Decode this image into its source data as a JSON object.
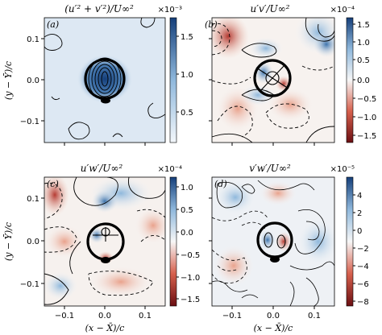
{
  "figure": {
    "shared_axes": {
      "ylabel": "(y − Ȳ)/c",
      "xlabel": "(x − X̄)/c",
      "x_ticks": [
        "−0.1",
        "0.0",
        "0.1"
      ],
      "y_ticks": [
        "0.1",
        "0.0",
        "−0.1"
      ]
    }
  },
  "colors": {
    "blue_strong": "#1f4e8f",
    "blue_mid": "#6fa3cf",
    "blue_light": "#cfe0ef",
    "white": "#f7f7f7",
    "red_light": "#f2c9b8",
    "red_mid": "#d6604d",
    "red_strong": "#8b1a1a"
  },
  "chart_data": [
    {
      "panel_label": "(a)",
      "type": "heatmap",
      "title": "(u′² + v′²)/U∞²",
      "exponent": "×10⁻³",
      "xlim": [
        -0.15,
        0.15
      ],
      "ylim": [
        -0.15,
        0.15
      ],
      "colorbar": {
        "min": 0.15,
        "max": 1.8,
        "ticks": [
          "1.5",
          "1.0",
          "0.5"
        ],
        "colormap": "white-to-blue"
      },
      "features": "Isolated peak (≈1.8×10⁻³) at the vortex core (0,0) surrounded by concentric solid contours; background ≈0.3×10⁻³."
    },
    {
      "panel_label": "(b)",
      "type": "heatmap",
      "title": "u′v′/U∞²",
      "exponent": "×10⁻⁴",
      "xlim": [
        -0.15,
        0.15
      ],
      "ylim": [
        -0.15,
        0.15
      ],
      "colorbar": {
        "min": -1.7,
        "max": 1.7,
        "ticks": [
          "1.5",
          "1.0",
          "0.5",
          "0.0",
          "−0.5",
          "−1.0",
          "−1.5"
        ],
        "colormap": "red-white-blue"
      },
      "features": "Four-lobe pattern around the core; positive lobe upper-right, negative lobe upper-left; dashed contours for negative values."
    },
    {
      "panel_label": "(c)",
      "type": "heatmap",
      "title": "u′w′/U∞²",
      "exponent": "×10⁻⁴",
      "xlim": [
        -0.15,
        0.15
      ],
      "ylim": [
        -0.15,
        0.15
      ],
      "colorbar": {
        "min": -1.7,
        "max": 1.2,
        "ticks": [
          "1.0",
          "0.5",
          "0.0",
          "−0.5",
          "−1.0",
          "−1.5"
        ],
        "colormap": "red-white-blue"
      },
      "features": "Weak correlation field; positive blue region along the upper-left/top, negative regions lower-left and near the core."
    },
    {
      "panel_label": "(d)",
      "type": "heatmap",
      "title": "v′w′/U∞²",
      "exponent": "×10⁻⁵",
      "xlim": [
        -0.15,
        0.15
      ],
      "ylim": [
        -0.15,
        0.15
      ],
      "colorbar": {
        "min": -9,
        "max": 5.5,
        "ticks": [
          "4",
          "2",
          "0",
          "−2",
          "−4",
          "−6",
          "−8"
        ],
        "colormap": "red-white-blue"
      },
      "features": "Blue positive patches upper-left and right; strong negative spot at the core; lower-left dense negative contours."
    }
  ]
}
